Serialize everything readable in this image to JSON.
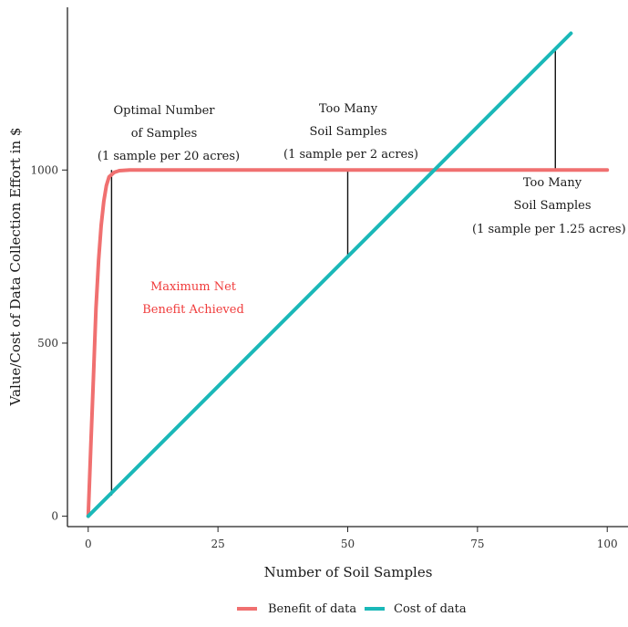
{
  "chart_data": {
    "type": "line",
    "xlabel": "Number of Soil Samples",
    "ylabel": "Value/Cost of Data Collection Effort in $",
    "xlim": [
      -4,
      104
    ],
    "ylim": [
      -30,
      1470
    ],
    "x_ticks": [
      0,
      25,
      50,
      75,
      100
    ],
    "y_ticks": [
      0,
      500,
      1000
    ],
    "grid": false,
    "legend_position": "bottom",
    "series": [
      {
        "name": "Benefit of data",
        "color": "#f07070",
        "x": [
          0,
          0.5,
          1,
          1.5,
          2,
          2.5,
          3,
          3.5,
          4,
          5,
          6,
          8,
          10,
          20,
          40,
          60,
          80,
          100
        ],
        "y": [
          0,
          200,
          400,
          600,
          740,
          840,
          910,
          955,
          980,
          993,
          998,
          1000,
          1000,
          1000,
          1000,
          1000,
          1000,
          1000
        ]
      },
      {
        "name": "Cost of data",
        "color": "#1ab8b8",
        "x": [
          0,
          93
        ],
        "y": [
          0,
          1395
        ]
      }
    ],
    "markers": [
      {
        "x": 4.5,
        "y_from": 60,
        "y_to": 1000
      },
      {
        "x": 50,
        "y_from": 750,
        "y_to": 1000
      },
      {
        "x": 90,
        "y_from": 1000,
        "y_to": 1350
      }
    ],
    "annotations": [
      {
        "lines": [
          "Optimal Number",
          "of Samples",
          "(1 sample per 20 acres)"
        ],
        "color": "#1a1a1a"
      },
      {
        "lines": [
          "Too Many",
          "Soil Samples",
          "(1 sample per 2 acres)"
        ],
        "color": "#1a1a1a"
      },
      {
        "lines": [
          "Too Many",
          "Soil Samples",
          "(1 sample per 1.25 acres)"
        ],
        "color": "#1a1a1a"
      },
      {
        "lines": [
          "Maximum Net",
          "Benefit Achieved"
        ],
        "color": "#f03c3c"
      }
    ]
  }
}
